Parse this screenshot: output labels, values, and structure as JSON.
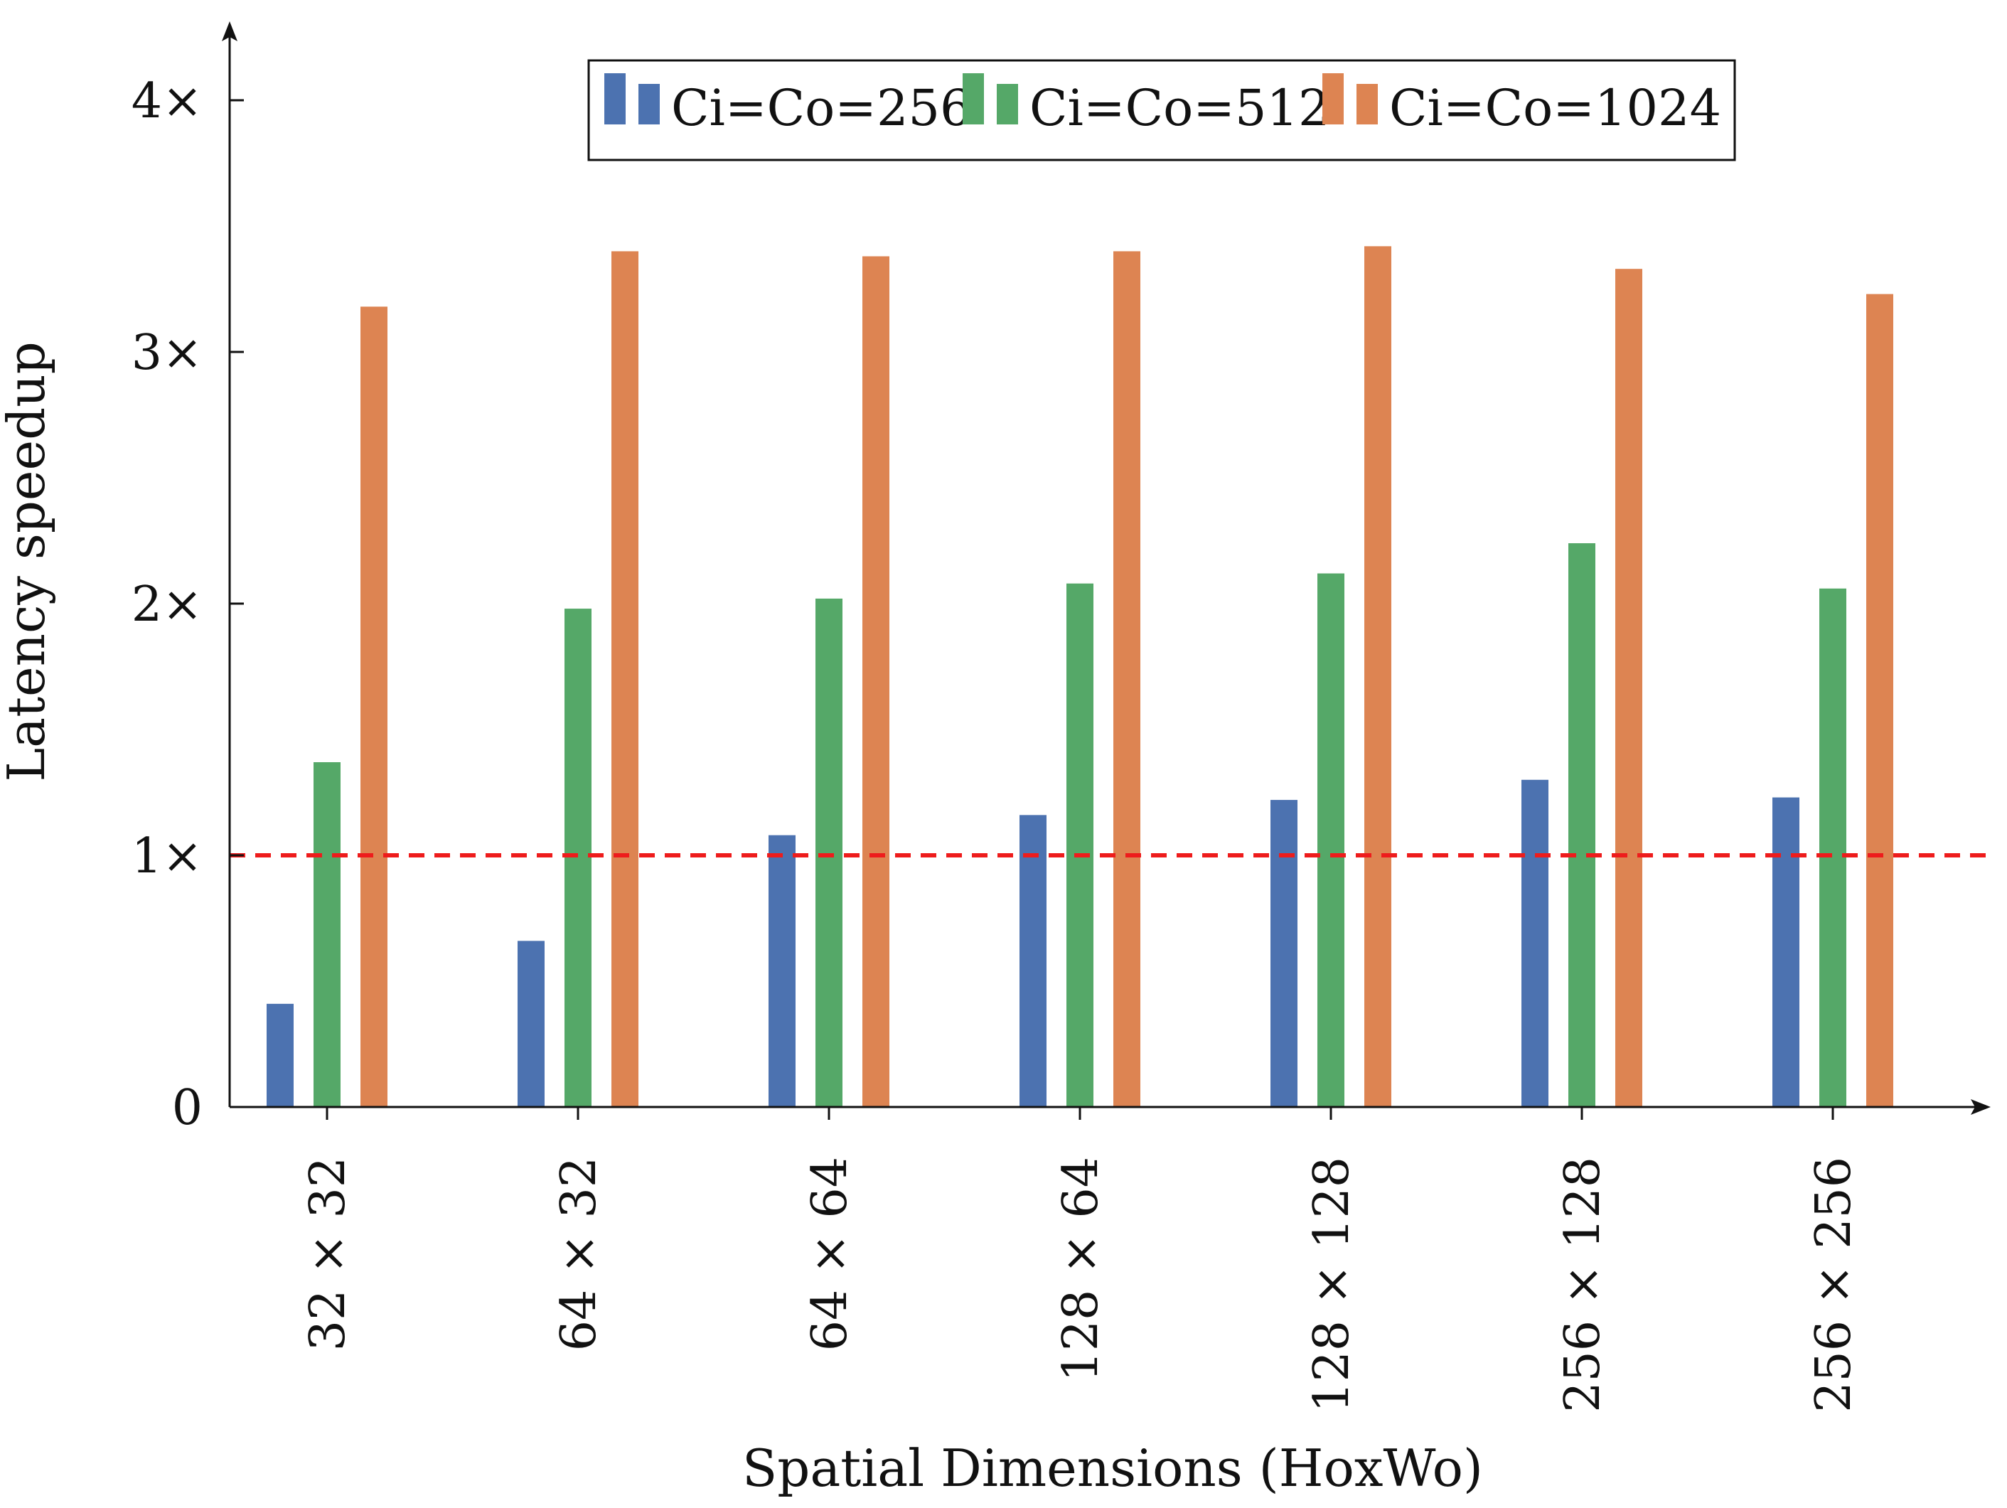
{
  "chart_data": {
    "type": "bar",
    "categories": [
      "32 × 32",
      "64 × 32",
      "64 × 64",
      "128 × 64",
      "128 × 128",
      "256 × 128",
      "256 × 256"
    ],
    "series": [
      {
        "name": "Ci=Co=256",
        "color": "#4c72b0",
        "values": [
          0.41,
          0.66,
          1.08,
          1.16,
          1.22,
          1.3,
          1.23
        ]
      },
      {
        "name": "Ci=Co=512",
        "color": "#55a868",
        "values": [
          1.37,
          1.98,
          2.02,
          2.08,
          2.12,
          2.24,
          2.06
        ]
      },
      {
        "name": "Ci=Co=1024",
        "color": "#dd8452",
        "values": [
          3.18,
          3.4,
          3.38,
          3.4,
          3.42,
          3.33,
          3.23
        ]
      }
    ],
    "xlabel": "Spatial Dimensions (HoxWo)",
    "ylabel": "Latency speedup",
    "ylim": [
      0,
      4.3
    ],
    "yticks": [
      0,
      1,
      2,
      3,
      4
    ],
    "ytick_labels": [
      "0",
      "1×",
      "2×",
      "3×",
      "4×"
    ],
    "reference_line": {
      "y": 1,
      "color": "#ee1c1c",
      "style": "dashed"
    },
    "legend_position": "top"
  }
}
